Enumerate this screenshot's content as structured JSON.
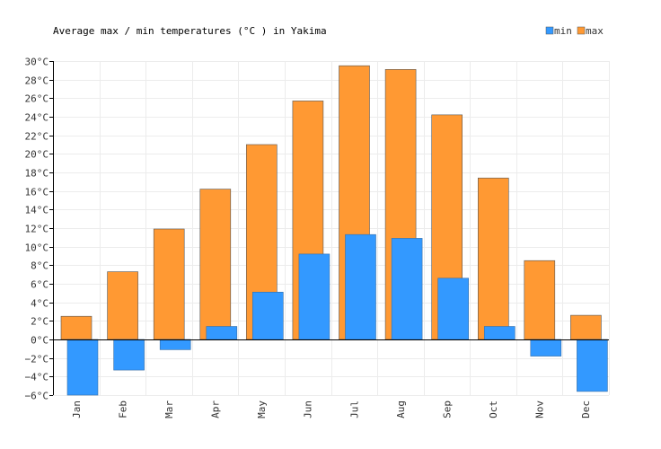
{
  "chart_data": {
    "type": "bar",
    "title": "Average max / min temperatures (°C ) in Yakima",
    "categories": [
      "Jan",
      "Feb",
      "Mar",
      "Apr",
      "May",
      "Jun",
      "Jul",
      "Aug",
      "Sep",
      "Oct",
      "Nov",
      "Dec"
    ],
    "series": [
      {
        "name": "min",
        "color": "#3399ff",
        "values": [
          -6.0,
          -3.3,
          -1.1,
          1.4,
          5.1,
          9.2,
          11.3,
          10.9,
          6.6,
          1.4,
          -1.8,
          -5.6
        ]
      },
      {
        "name": "max",
        "color": "#ff9933",
        "values": [
          2.5,
          7.3,
          11.9,
          16.2,
          21.0,
          25.7,
          29.5,
          29.1,
          24.2,
          17.4,
          8.5,
          2.6
        ]
      }
    ],
    "ylim": [
      -6,
      30
    ],
    "yticks": [
      "30°C",
      "28°C",
      "26°C",
      "24°C",
      "22°C",
      "20°C",
      "18°C",
      "16°C",
      "14°C",
      "12°C",
      "10°C",
      "8°C",
      "6°C",
      "4°C",
      "2°C",
      "0°C",
      "−2°C",
      "−4°C",
      "−6°C"
    ],
    "legend_position": "top-right",
    "grid": true
  }
}
